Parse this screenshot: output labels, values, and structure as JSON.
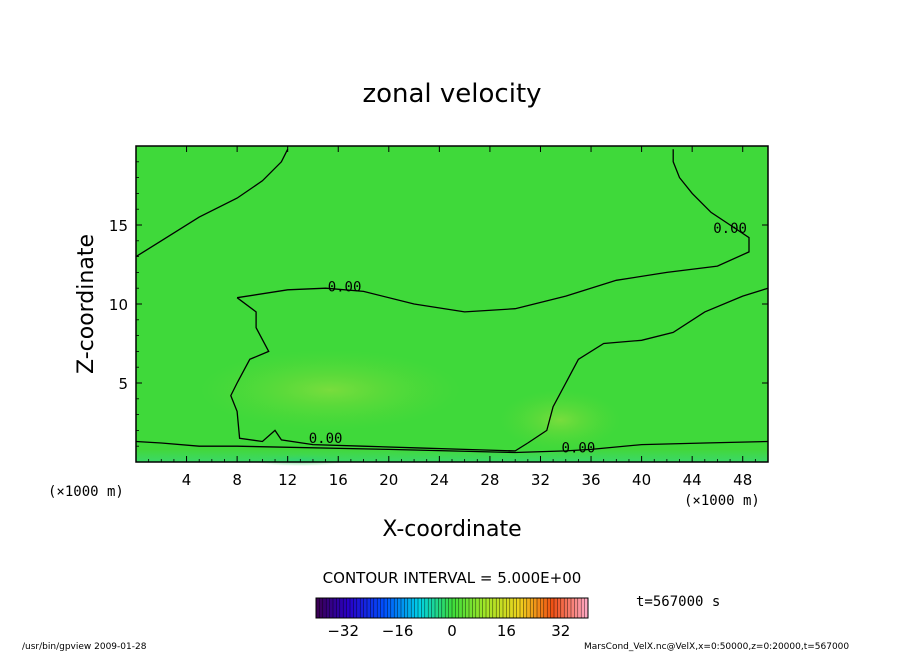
{
  "chart_data": {
    "type": "heatmap",
    "title": "zonal velocity",
    "xlabel": "X-coordinate",
    "ylabel": "Z-coordinate",
    "x_units_left": "(×1000 m)",
    "x_units_right": "(×1000 m)",
    "xlim": [
      0,
      50
    ],
    "ylim": [
      0,
      20
    ],
    "x_ticks": [
      4,
      8,
      12,
      16,
      20,
      24,
      28,
      32,
      36,
      40,
      44,
      48
    ],
    "y_ticks": [
      5,
      10,
      15
    ],
    "contour_interval_label": "CONTOUR INTERVAL = 5.000E+00",
    "contour_labels": [
      {
        "text": "0.00",
        "x": 16.5,
        "y": 10.8
      },
      {
        "text": "0.00",
        "x": 47.0,
        "y": 14.5
      },
      {
        "text": "0.00",
        "x": 15.0,
        "y": 1.2
      },
      {
        "text": "0.00",
        "x": 35.0,
        "y": 0.6
      }
    ],
    "zero_contours": [
      {
        "name": "upper-left",
        "points": [
          [
            0,
            13
          ],
          [
            2,
            14
          ],
          [
            5,
            15.5
          ],
          [
            8,
            16.7
          ],
          [
            10,
            17.8
          ],
          [
            11.5,
            19
          ],
          [
            12,
            19.8
          ]
        ]
      },
      {
        "name": "upper-right",
        "points": [
          [
            42.5,
            19.8
          ],
          [
            42.5,
            19
          ],
          [
            43,
            18
          ],
          [
            44,
            17
          ],
          [
            45.5,
            15.8
          ],
          [
            47,
            15
          ],
          [
            48.5,
            14.2
          ],
          [
            48.5,
            13.3
          ],
          [
            46,
            12.4
          ],
          [
            42,
            12
          ],
          [
            38,
            11.5
          ],
          [
            34,
            10.5
          ],
          [
            30,
            9.7
          ],
          [
            26,
            9.5
          ],
          [
            22,
            10
          ],
          [
            18,
            10.8
          ],
          [
            15,
            11
          ],
          [
            12,
            10.9
          ],
          [
            8,
            10.4
          ]
        ]
      },
      {
        "name": "middle-left",
        "points": [
          [
            8,
            10.4
          ],
          [
            9.5,
            9.5
          ],
          [
            9.5,
            8.5
          ],
          [
            10.5,
            7
          ],
          [
            9,
            6.5
          ],
          [
            8,
            5
          ],
          [
            7.5,
            4.2
          ],
          [
            8,
            3.2
          ],
          [
            8.2,
            1.5
          ],
          [
            10,
            1.3
          ],
          [
            11,
            2
          ],
          [
            11.5,
            1.4
          ],
          [
            14,
            1.1
          ],
          [
            18,
            1
          ],
          [
            22,
            0.9
          ],
          [
            26,
            0.8
          ],
          [
            30,
            0.7
          ],
          [
            31,
            1.2
          ]
        ]
      },
      {
        "name": "right-lower",
        "points": [
          [
            31,
            1.2
          ],
          [
            32.5,
            2
          ],
          [
            33,
            3.5
          ],
          [
            34,
            5
          ],
          [
            35,
            6.5
          ],
          [
            37,
            7.5
          ],
          [
            40,
            7.7
          ],
          [
            42.5,
            8.2
          ],
          [
            45,
            9.5
          ],
          [
            48,
            10.5
          ],
          [
            50,
            11
          ]
        ]
      },
      {
        "name": "bottom",
        "points": [
          [
            0,
            1.3
          ],
          [
            2,
            1.2
          ],
          [
            5,
            1
          ],
          [
            8,
            1
          ],
          [
            20,
            0.8
          ],
          [
            30,
            0.6
          ],
          [
            34,
            0.7
          ],
          [
            36,
            0.8
          ],
          [
            40,
            1.1
          ],
          [
            45,
            1.2
          ],
          [
            50,
            1.3
          ]
        ]
      }
    ],
    "colorbar": {
      "ticks": [
        -32,
        -16,
        0,
        16,
        32
      ],
      "range": [
        -40,
        40
      ]
    },
    "time_label": "t=567000 s"
  },
  "footer": {
    "left": "/usr/bin/gpview   2009-01-28",
    "right": "MarsCond_VelX.nc@VelX,x=0:50000,z=0:20000,t=567000"
  }
}
